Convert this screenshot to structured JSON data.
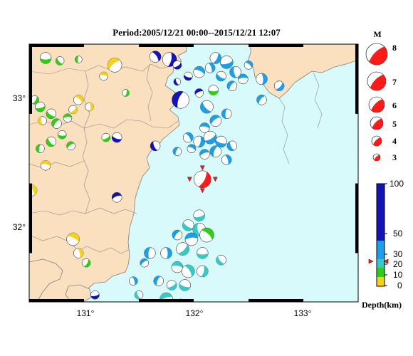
{
  "map": {
    "title": "Period:2005/12/21 00:00--2015/12/21 12:07",
    "lon_labels": [
      "131°",
      "132°",
      "133°"
    ],
    "lat_labels": [
      "33°",
      "32°"
    ],
    "lon_range": [
      130.5,
      133.5
    ],
    "lat_range": [
      31.6,
      33.45
    ],
    "colors": {
      "land": "#fbe0c0",
      "sea": "#d8fafa",
      "coast": "#7f7f7f",
      "frame": "#000000"
    }
  },
  "legend": {
    "title": "M",
    "magnitudes": [
      "8",
      "7",
      "6",
      "5",
      "4",
      "3"
    ],
    "mag_color": "#ff1a1a",
    "depth_scale": {
      "title": "Depth(km)",
      "ticks": [
        "100",
        "50",
        "30",
        "20",
        "10",
        "0"
      ],
      "colors": [
        "#f2d21e",
        "#33cc1a",
        "#38c8c8",
        "#1e9ee6",
        "#1414b4"
      ]
    }
  },
  "events": [
    {
      "lon": 130.65,
      "lat": 33.35,
      "color": "#33cc1a",
      "r": 8
    },
    {
      "lon": 130.78,
      "lat": 33.33,
      "color": "#33cc1a",
      "r": 6
    },
    {
      "lon": 130.95,
      "lat": 33.34,
      "color": "#33cc1a",
      "r": 5
    },
    {
      "lon": 131.28,
      "lat": 33.3,
      "color": "#f2d21e",
      "r": 10
    },
    {
      "lon": 131.18,
      "lat": 33.22,
      "color": "#f2d21e",
      "r": 6
    },
    {
      "lon": 131.65,
      "lat": 33.36,
      "color": "#1414b4",
      "r": 8
    },
    {
      "lon": 131.78,
      "lat": 33.34,
      "color": "#1414b4",
      "r": 10
    },
    {
      "lon": 131.85,
      "lat": 33.3,
      "color": "#1414b4",
      "r": 6
    },
    {
      "lon": 131.95,
      "lat": 33.22,
      "color": "#1414b4",
      "r": 6
    },
    {
      "lon": 131.85,
      "lat": 33.18,
      "color": "#1414b4",
      "r": 5
    },
    {
      "lon": 131.88,
      "lat": 33.05,
      "color": "#1414b4",
      "r": 12
    },
    {
      "lon": 132.05,
      "lat": 33.1,
      "color": "#1414b4",
      "r": 6
    },
    {
      "lon": 132.05,
      "lat": 33.25,
      "color": "#1e9ee6",
      "r": 8
    },
    {
      "lon": 132.15,
      "lat": 33.28,
      "color": "#1e9ee6",
      "r": 7
    },
    {
      "lon": 132.2,
      "lat": 33.35,
      "color": "#1e9ee6",
      "r": 8
    },
    {
      "lon": 132.3,
      "lat": 33.32,
      "color": "#1e9ee6",
      "r": 9
    },
    {
      "lon": 132.25,
      "lat": 33.22,
      "color": "#1e9ee6",
      "r": 7
    },
    {
      "lon": 132.38,
      "lat": 33.25,
      "color": "#1e9ee6",
      "r": 8
    },
    {
      "lon": 132.35,
      "lat": 33.15,
      "color": "#1e9ee6",
      "r": 7
    },
    {
      "lon": 132.45,
      "lat": 33.2,
      "color": "#1e9ee6",
      "r": 7
    },
    {
      "lon": 132.5,
      "lat": 33.3,
      "color": "#1e9ee6",
      "r": 6
    },
    {
      "lon": 132.62,
      "lat": 33.2,
      "color": "#1e9ee6",
      "r": 8
    },
    {
      "lon": 132.78,
      "lat": 33.15,
      "color": "#1e9ee6",
      "r": 7
    },
    {
      "lon": 132.18,
      "lat": 33.12,
      "color": "#33cc1a",
      "r": 7
    },
    {
      "lon": 132.12,
      "lat": 33.0,
      "color": "#1e9ee6",
      "r": 9
    },
    {
      "lon": 132.3,
      "lat": 32.95,
      "color": "#1e9ee6",
      "r": 7
    },
    {
      "lon": 132.2,
      "lat": 32.9,
      "color": "#1e9ee6",
      "r": 8
    },
    {
      "lon": 132.1,
      "lat": 32.85,
      "color": "#1e9ee6",
      "r": 7
    },
    {
      "lon": 131.95,
      "lat": 32.78,
      "color": "#1e9ee6",
      "r": 7
    },
    {
      "lon": 132.05,
      "lat": 32.75,
      "color": "#1e9ee6",
      "r": 8
    },
    {
      "lon": 132.15,
      "lat": 32.78,
      "color": "#1e9ee6",
      "r": 9
    },
    {
      "lon": 132.25,
      "lat": 32.75,
      "color": "#1e9ee6",
      "r": 8
    },
    {
      "lon": 132.35,
      "lat": 32.72,
      "color": "#1e9ee6",
      "r": 7
    },
    {
      "lon": 132.2,
      "lat": 32.68,
      "color": "#1e9ee6",
      "r": 8
    },
    {
      "lon": 132.1,
      "lat": 32.66,
      "color": "#1e9ee6",
      "r": 7
    },
    {
      "lon": 131.98,
      "lat": 32.7,
      "color": "#1e9ee6",
      "r": 6
    },
    {
      "lon": 132.3,
      "lat": 32.62,
      "color": "#1e9ee6",
      "r": 7
    },
    {
      "lon": 132.08,
      "lat": 32.48,
      "color": "#ff1a1a",
      "r": 12
    },
    {
      "lon": 132.05,
      "lat": 32.22,
      "color": "#38c8c8",
      "r": 8
    },
    {
      "lon": 131.95,
      "lat": 32.15,
      "color": "#38c8c8",
      "r": 8
    },
    {
      "lon": 132.05,
      "lat": 32.12,
      "color": "#38c8c8",
      "r": 9
    },
    {
      "lon": 131.85,
      "lat": 32.08,
      "color": "#1e9ee6",
      "r": 7
    },
    {
      "lon": 131.98,
      "lat": 32.05,
      "color": "#1e9ee6",
      "r": 9
    },
    {
      "lon": 132.12,
      "lat": 32.08,
      "color": "#33cc1a",
      "r": 10
    },
    {
      "lon": 131.75,
      "lat": 31.95,
      "color": "#1e9ee6",
      "r": 8
    },
    {
      "lon": 131.9,
      "lat": 31.98,
      "color": "#38c8c8",
      "r": 9
    },
    {
      "lon": 132.08,
      "lat": 31.95,
      "color": "#38c8c8",
      "r": 8
    },
    {
      "lon": 132.25,
      "lat": 31.9,
      "color": "#38c8c8",
      "r": 7
    },
    {
      "lon": 131.6,
      "lat": 31.95,
      "color": "#1e9ee6",
      "r": 8
    },
    {
      "lon": 131.55,
      "lat": 31.88,
      "color": "#1e9ee6",
      "r": 6
    },
    {
      "lon": 131.85,
      "lat": 31.85,
      "color": "#38c8c8",
      "r": 8
    },
    {
      "lon": 131.95,
      "lat": 31.82,
      "color": "#38c8c8",
      "r": 9
    },
    {
      "lon": 132.08,
      "lat": 31.82,
      "color": "#38c8c8",
      "r": 8
    },
    {
      "lon": 131.8,
      "lat": 31.72,
      "color": "#38c8c8",
      "r": 7
    },
    {
      "lon": 131.92,
      "lat": 31.72,
      "color": "#38c8c8",
      "r": 8
    },
    {
      "lon": 131.5,
      "lat": 31.65,
      "color": "#38c8c8",
      "r": 6
    },
    {
      "lon": 131.68,
      "lat": 31.75,
      "color": "#1e9ee6",
      "r": 7
    },
    {
      "lon": 131.75,
      "lat": 31.62,
      "color": "#38c8c8",
      "r": 9
    },
    {
      "lon": 131.88,
      "lat": 31.58,
      "color": "#38c8c8",
      "r": 8
    },
    {
      "lon": 131.45,
      "lat": 31.75,
      "color": "#1e9ee6",
      "r": 6
    },
    {
      "lon": 130.55,
      "lat": 33.05,
      "color": "#33cc1a",
      "r": 6
    },
    {
      "lon": 130.6,
      "lat": 33.0,
      "color": "#33cc1a",
      "r": 7
    },
    {
      "lon": 130.7,
      "lat": 32.95,
      "color": "#33cc1a",
      "r": 7
    },
    {
      "lon": 130.62,
      "lat": 32.9,
      "color": "#f2d21e",
      "r": 6
    },
    {
      "lon": 130.75,
      "lat": 32.88,
      "color": "#33cc1a",
      "r": 7
    },
    {
      "lon": 130.85,
      "lat": 32.92,
      "color": "#33cc1a",
      "r": 6
    },
    {
      "lon": 130.95,
      "lat": 33.05,
      "color": "#f2d21e",
      "r": 7
    },
    {
      "lon": 131.05,
      "lat": 33.0,
      "color": "#f2d21e",
      "r": 6
    },
    {
      "lon": 130.9,
      "lat": 32.98,
      "color": "#f2d21e",
      "r": 6
    },
    {
      "lon": 130.8,
      "lat": 32.8,
      "color": "#33cc1a",
      "r": 6
    },
    {
      "lon": 130.7,
      "lat": 32.75,
      "color": "#33cc1a",
      "r": 7
    },
    {
      "lon": 130.6,
      "lat": 32.7,
      "color": "#33cc1a",
      "r": 6
    },
    {
      "lon": 130.88,
      "lat": 32.72,
      "color": "#33cc1a",
      "r": 6
    },
    {
      "lon": 130.65,
      "lat": 32.58,
      "color": "#f2d21e",
      "r": 7
    },
    {
      "lon": 130.52,
      "lat": 32.4,
      "color": "#f2d21e",
      "r": 8
    },
    {
      "lon": 131.38,
      "lat": 33.1,
      "color": "#33cc1a",
      "r": 5
    },
    {
      "lon": 131.2,
      "lat": 32.78,
      "color": "#33cc1a",
      "r": 6
    },
    {
      "lon": 131.3,
      "lat": 32.78,
      "color": "#1414b4",
      "r": 7
    },
    {
      "lon": 131.65,
      "lat": 32.72,
      "color": "#1414b4",
      "r": 7
    },
    {
      "lon": 131.85,
      "lat": 32.68,
      "color": "#1e9ee6",
      "r": 6
    },
    {
      "lon": 131.3,
      "lat": 32.35,
      "color": "#1414b4",
      "r": 7
    },
    {
      "lon": 130.9,
      "lat": 32.05,
      "color": "#f2d21e",
      "r": 9
    },
    {
      "lon": 130.95,
      "lat": 31.95,
      "color": "#f2d21e",
      "r": 7
    },
    {
      "lon": 131.02,
      "lat": 31.88,
      "color": "#33cc1a",
      "r": 6
    },
    {
      "lon": 131.1,
      "lat": 31.65,
      "color": "#1414b4",
      "r": 6
    },
    {
      "lon": 131.12,
      "lat": 31.5,
      "color": "#1e9ee6",
      "r": 6
    },
    {
      "lon": 131.5,
      "lat": 31.55,
      "color": "#33cc1a",
      "r": 6
    },
    {
      "lon": 132.62,
      "lat": 33.05,
      "color": "#1e9ee6",
      "r": 7
    }
  ]
}
